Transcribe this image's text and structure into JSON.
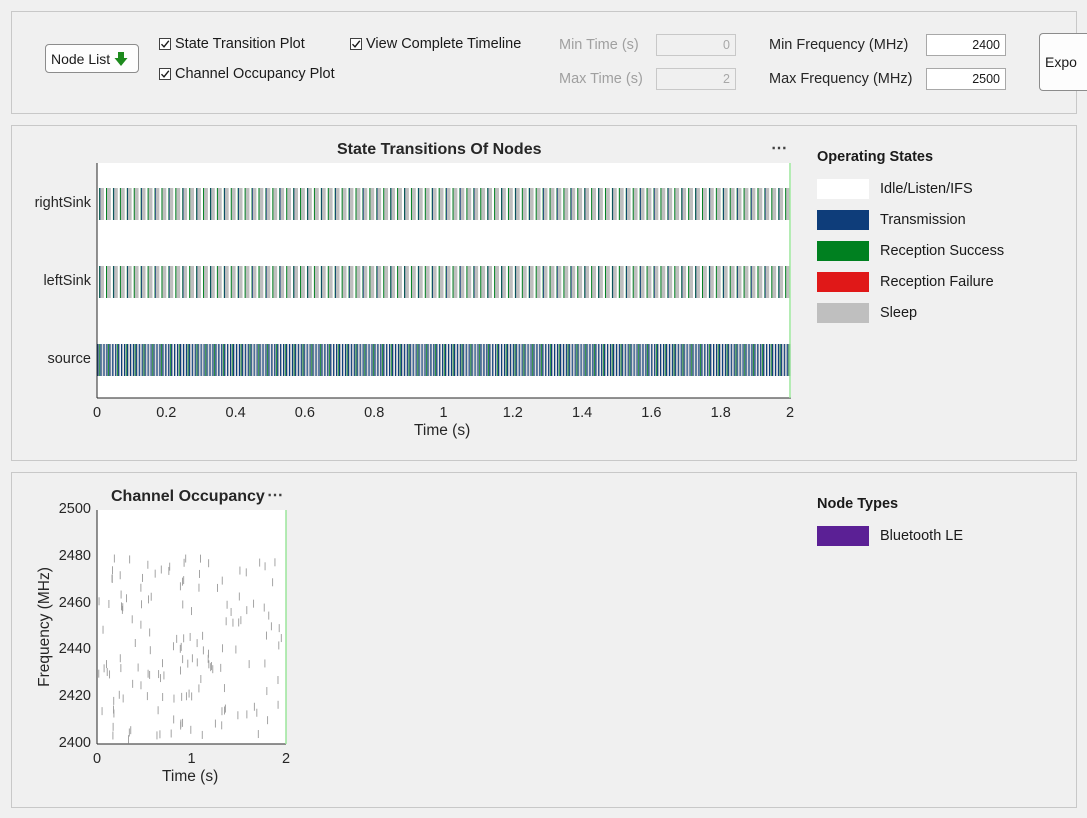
{
  "toolbar": {
    "node_list_label": "Node List",
    "state_transition_label": "State Transition Plot",
    "channel_occupancy_label": "Channel Occupancy Plot",
    "complete_timeline_label": "View Complete Timeline",
    "state_transition_checked": true,
    "channel_occupancy_checked": true,
    "complete_timeline_checked": true,
    "min_time_label": "Min Time (s)",
    "max_time_label": "Max Time (s)",
    "min_time_value": "0",
    "max_time_value": "2",
    "min_freq_label": "Min Frequency (MHz)",
    "max_freq_label": "Max Frequency (MHz)",
    "min_freq_value": "2400",
    "max_freq_value": "2500",
    "export_label": "Expo"
  },
  "state_plot": {
    "more_label": "⋯",
    "legend_title": "Operating States",
    "legend": [
      {
        "label": "Idle/Listen/IFS",
        "color": "#ffffff"
      },
      {
        "label": "Transmission",
        "color": "#0e3d7a"
      },
      {
        "label": "Reception Success",
        "color": "#008020"
      },
      {
        "label": "Reception Failure",
        "color": "#e01818"
      },
      {
        "label": "Sleep",
        "color": "#bfbfbf"
      }
    ]
  },
  "occupancy_plot": {
    "more_label": "⋯",
    "legend_title": "Node Types",
    "legend": [
      {
        "label": "Bluetooth LE",
        "color": "#5b2095"
      }
    ]
  },
  "chart_data": [
    {
      "type": "timeline",
      "title": "State Transitions Of Nodes",
      "xlabel": "Time (s)",
      "ylabel": "",
      "xlim": [
        0,
        2
      ],
      "x_ticks": [
        "0",
        "0.2",
        "0.4",
        "0.6",
        "0.8",
        "1",
        "1.2",
        "1.4",
        "1.6",
        "1.8",
        "2"
      ],
      "y_categories": [
        "rightSink",
        "leftSink",
        "source"
      ],
      "series": [
        {
          "name": "rightSink",
          "pattern": "Sleep with periodic Reception Success / Transmission events",
          "period_s": 0.02
        },
        {
          "name": "leftSink",
          "pattern": "Sleep with periodic Reception Success / Transmission events",
          "period_s": 0.02
        },
        {
          "name": "source",
          "pattern": "Frequent Transmission and Reception Success events",
          "period_s": 0.0085
        }
      ]
    },
    {
      "type": "scatter",
      "title": "Channel Occupancy",
      "xlabel": "Time (s)",
      "ylabel": "Frequency (MHz)",
      "xlim": [
        0,
        2
      ],
      "ylim": [
        2400,
        2500
      ],
      "x_ticks": [
        "0",
        "1",
        "2"
      ],
      "y_ticks": [
        "2400",
        "2420",
        "2440",
        "2460",
        "2480",
        "2500"
      ],
      "series": [
        {
          "name": "Bluetooth LE",
          "marker": "short vertical dash",
          "x_range": [
            0,
            2
          ],
          "y_range": [
            2402,
            2480
          ],
          "approx_points": 150
        }
      ]
    }
  ]
}
